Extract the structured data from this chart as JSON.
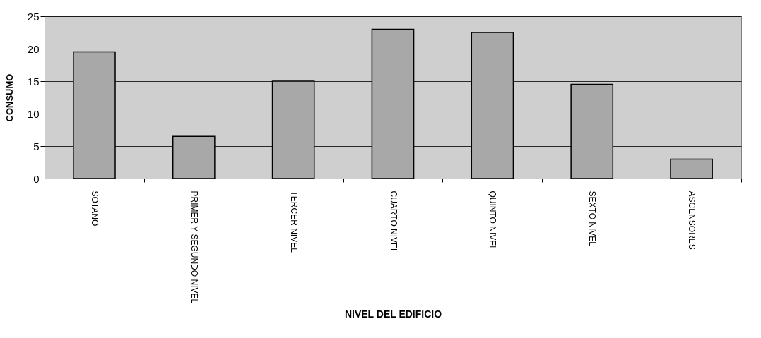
{
  "chart_data": {
    "type": "bar",
    "xlabel": "NIVEL DEL EDIFICIO",
    "ylabel": "CONSUMO",
    "categories": [
      "SOTANO",
      "PRIMER Y SEGUNDO NIVEL",
      "TERCER NIVEL",
      "CUARTO NIVEL",
      "QUINTO NIVEL",
      "SEXTO NIVEL",
      "ASCENSORES"
    ],
    "values": [
      19.5,
      6.5,
      15,
      23,
      22.5,
      14.5,
      3
    ],
    "color": "#a8a8a8",
    "ylim": [
      0,
      25
    ],
    "yticks": [
      0,
      5,
      10,
      15,
      20,
      25
    ],
    "grid": true
  }
}
